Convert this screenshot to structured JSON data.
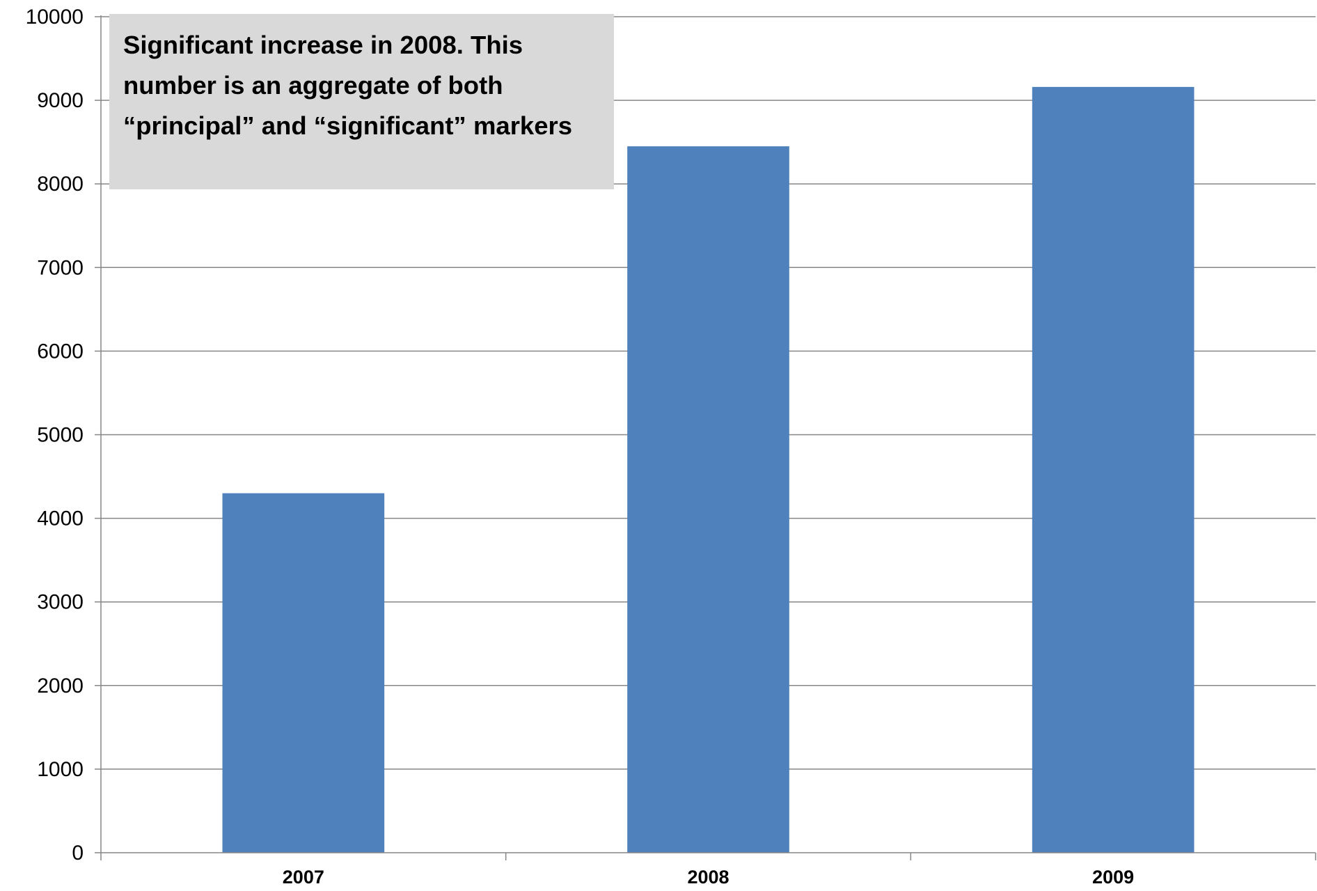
{
  "chart_data": {
    "type": "bar",
    "categories": [
      "2007",
      "2008",
      "2009"
    ],
    "series": [
      {
        "values": [
          4300,
          8450,
          9160
        ]
      }
    ],
    "yticks": [
      "0",
      "1000",
      "2000",
      "3000",
      "4000",
      "5000",
      "6000",
      "7000",
      "8000",
      "9000",
      "10000"
    ],
    "ylim": [
      0,
      10000
    ],
    "grid": true,
    "legend": "none",
    "title": "",
    "xlabel": "",
    "ylabel": "",
    "annotation": "Significant increase in 2008. This number is an aggregate of both “principal” and “significant” markers",
    "bar_color": "#4f81bd",
    "annotation_bg": "#d9d9d9",
    "grid_color": "#868686"
  }
}
